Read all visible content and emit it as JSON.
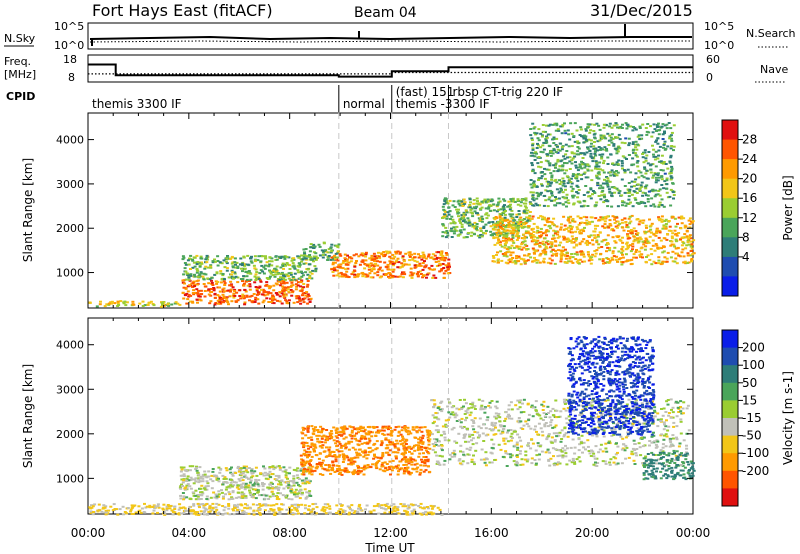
{
  "header": {
    "title": "Fort Hays East (fitACF)",
    "beam": "Beam 04",
    "date": "31/Dec/2015"
  },
  "panels": {
    "nsky_label": "N.Sky",
    "nsearch_label": "N.Search",
    "freq_label_line1": "Freq.",
    "freq_label_line2": "[MHz]",
    "nave_label": "Nave",
    "cpid_label": "CPID",
    "nsky_ticks": [
      "10^5",
      "10^0"
    ],
    "nsearch_ticks": [
      "10^5",
      "10^0"
    ],
    "freq_ticks": [
      "18",
      "8"
    ],
    "nave_ticks": [
      "60",
      "0"
    ]
  },
  "cpid": [
    {
      "start_hour": 0.0,
      "label": "themis 3300 IF"
    },
    {
      "start_hour": 9.95,
      "label": "normal"
    },
    {
      "start_hour": 12.05,
      "label": "(fast) 151"
    },
    {
      "start_hour": 12.05,
      "label": "themis -3300 IF"
    },
    {
      "start_hour": 14.3,
      "label": "rbsp CT-trig 220 IF"
    }
  ],
  "axes": {
    "xlabel": "Time UT",
    "x_tick_labels": [
      "00:00",
      "04:00",
      "08:00",
      "12:00",
      "16:00",
      "20:00",
      "00:00"
    ],
    "x_range_hours": [
      0,
      24
    ],
    "ylabel": "Slant Range [km]",
    "y_range_km": [
      200,
      4600
    ],
    "y_ticks": [
      1000,
      2000,
      3000,
      4000
    ]
  },
  "colorbars": {
    "power": {
      "label": "Power [dB]",
      "ticks": [
        "4",
        "8",
        "12",
        "16",
        "20",
        "24",
        "28"
      ],
      "colors": [
        "#0a1ee8",
        "#1f4db0",
        "#2e7d78",
        "#4aa55a",
        "#9acd32",
        "#f2c618",
        "#ff9a00",
        "#ff5500",
        "#e01010"
      ]
    },
    "velocity": {
      "label": "Velocity [m s-1]",
      "ticks": [
        "200",
        "100",
        "50",
        "15",
        "-15",
        "-50",
        "-100",
        "-200"
      ],
      "colors": [
        "#0a1ee8",
        "#1f4db0",
        "#2e7d78",
        "#4aa55a",
        "#9acd32",
        "#c0c0b8",
        "#f2c618",
        "#ff9a00",
        "#ff5500",
        "#e01010"
      ]
    }
  },
  "chart_data": {
    "type": "heatmap",
    "title": "Fort Hays East (fitACF)",
    "xlabel": "Time UT",
    "ylabel": "Slant Range [km]",
    "xlim": [
      0,
      24
    ],
    "ylim": [
      200,
      4600
    ],
    "grid": false,
    "frequency_mhz": [
      {
        "start_hour": 0.0,
        "end_hour": 1.1,
        "value": 14.5
      },
      {
        "start_hour": 1.1,
        "end_hour": 9.95,
        "value": 10.5
      },
      {
        "start_hour": 9.95,
        "end_hour": 12.05,
        "value": 10.0
      },
      {
        "start_hour": 12.05,
        "end_hour": 14.3,
        "value": 12.0
      },
      {
        "start_hour": 14.3,
        "end_hour": 24.0,
        "value": 13.5
      }
    ],
    "nave": [
      {
        "start_hour": 0.0,
        "end_hour": 12.05,
        "value": 18
      },
      {
        "start_hour": 12.05,
        "end_hour": 24.0,
        "value": 21
      }
    ],
    "power_features": [
      {
        "t_start": 0.0,
        "t_end": 3.6,
        "r_start": 250,
        "r_end": 380,
        "db": 18
      },
      {
        "t_start": 3.7,
        "t_end": 8.8,
        "r_start": 300,
        "r_end": 850,
        "db": 26
      },
      {
        "t_start": 3.7,
        "t_end": 9.0,
        "r_start": 850,
        "r_end": 1400,
        "db": 14
      },
      {
        "t_start": 8.4,
        "t_end": 9.9,
        "r_start": 1300,
        "r_end": 1700,
        "db": 13
      },
      {
        "t_start": 9.6,
        "t_end": 13.2,
        "r_start": 900,
        "r_end": 1500,
        "db": 24
      },
      {
        "t_start": 13.1,
        "t_end": 14.3,
        "r_start": 900,
        "r_end": 1500,
        "db": 25
      },
      {
        "t_start": 14.0,
        "t_end": 17.5,
        "r_start": 1800,
        "r_end": 2700,
        "db": 14
      },
      {
        "t_start": 16.0,
        "t_end": 24.0,
        "r_start": 1200,
        "r_end": 2300,
        "db": 21
      },
      {
        "t_start": 17.5,
        "t_end": 23.2,
        "r_start": 2500,
        "r_end": 4400,
        "db": 12
      }
    ],
    "velocity_features": [
      {
        "t_start": 0.0,
        "t_end": 14.0,
        "r_start": 200,
        "r_end": 450,
        "v": -20
      },
      {
        "t_start": 3.6,
        "t_end": 8.8,
        "r_start": 550,
        "r_end": 1300,
        "v": 0
      },
      {
        "t_start": 8.4,
        "t_end": 13.5,
        "r_start": 1100,
        "r_end": 2200,
        "v": -90
      },
      {
        "t_start": 13.5,
        "t_end": 23.8,
        "r_start": 1300,
        "r_end": 2800,
        "v": 0
      },
      {
        "t_start": 19.0,
        "t_end": 22.4,
        "r_start": 2000,
        "r_end": 4200,
        "v": 150
      },
      {
        "t_start": 22.0,
        "t_end": 24.0,
        "r_start": 1000,
        "r_end": 1600,
        "v": 60
      }
    ]
  }
}
